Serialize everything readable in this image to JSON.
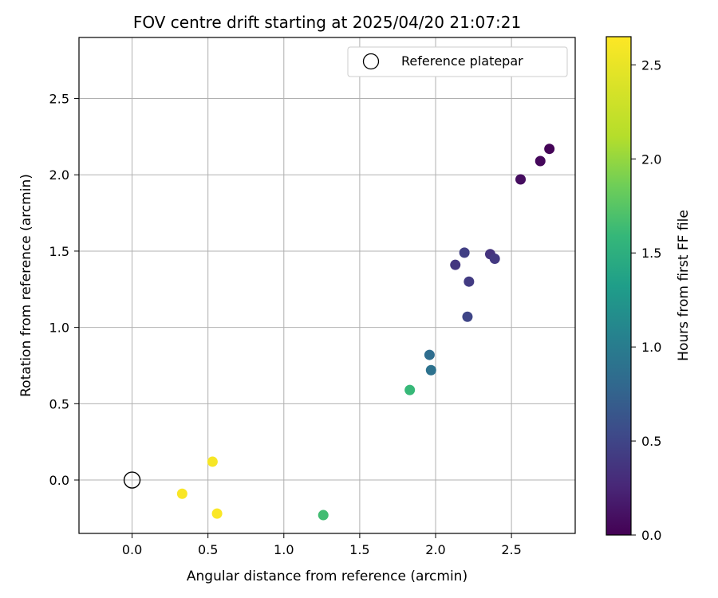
{
  "chart_data": {
    "type": "scatter",
    "title": "FOV centre drift starting at 2025/04/20 21:07:21",
    "xlabel": "Angular distance from reference (arcmin)",
    "ylabel": "Rotation from reference (arcmin)",
    "xlim": [
      -0.35,
      2.92
    ],
    "ylim": [
      -0.35,
      2.9
    ],
    "xticks": [
      0.0,
      0.5,
      1.0,
      1.5,
      2.0,
      2.5
    ],
    "yticks": [
      0.0,
      0.5,
      1.0,
      1.5,
      2.0,
      2.5
    ],
    "grid": true,
    "legend": {
      "placement": "top-right",
      "entries": [
        "Reference platepar"
      ]
    },
    "reference_point": {
      "label": "Reference platepar",
      "x": 0.0,
      "y": 0.0,
      "marker": "open-circle"
    },
    "colorbar": {
      "label": "Hours from first FF file",
      "colormap": "viridis",
      "range": [
        0.0,
        2.65
      ],
      "ticks": [
        0.0,
        0.5,
        1.0,
        1.5,
        2.0,
        2.5
      ]
    },
    "points": [
      {
        "x": 2.75,
        "y": 2.17,
        "hours": 0.02
      },
      {
        "x": 2.69,
        "y": 2.09,
        "hours": 0.05
      },
      {
        "x": 2.56,
        "y": 1.97,
        "hours": 0.08
      },
      {
        "x": 2.36,
        "y": 1.48,
        "hours": 0.35
      },
      {
        "x": 2.39,
        "y": 1.45,
        "hours": 0.4
      },
      {
        "x": 2.19,
        "y": 1.49,
        "hours": 0.45
      },
      {
        "x": 2.13,
        "y": 1.41,
        "hours": 0.38
      },
      {
        "x": 2.22,
        "y": 1.3,
        "hours": 0.42
      },
      {
        "x": 2.21,
        "y": 1.07,
        "hours": 0.5
      },
      {
        "x": 1.96,
        "y": 0.82,
        "hours": 0.85
      },
      {
        "x": 1.97,
        "y": 0.72,
        "hours": 0.9
      },
      {
        "x": 1.83,
        "y": 0.59,
        "hours": 1.6
      },
      {
        "x": 1.26,
        "y": -0.23,
        "hours": 1.65
      },
      {
        "x": 0.53,
        "y": 0.12,
        "hours": 2.6
      },
      {
        "x": 0.33,
        "y": -0.09,
        "hours": 2.62
      },
      {
        "x": 0.56,
        "y": -0.22,
        "hours": 2.63
      }
    ]
  }
}
